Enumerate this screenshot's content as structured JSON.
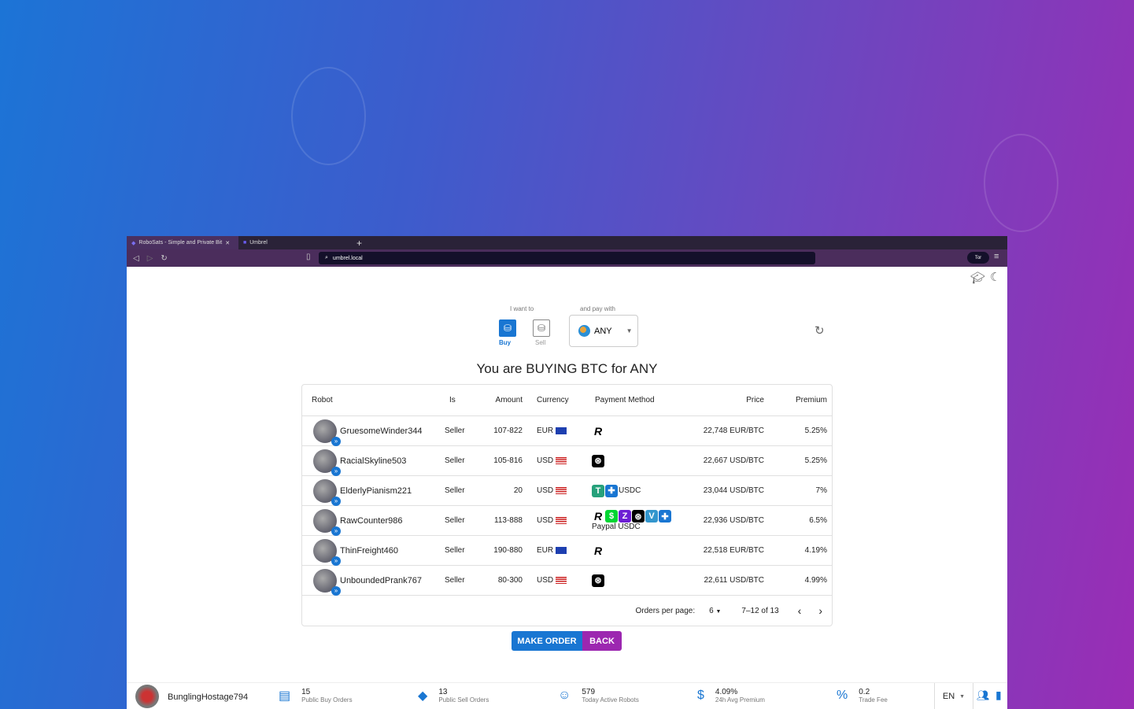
{
  "browser": {
    "tabs": [
      {
        "title": "RoboSats - Simple and Private Bit"
      },
      {
        "title": "Umbrel"
      }
    ],
    "new_tab": "+",
    "url": "umbrel.local",
    "tor": "Tor"
  },
  "selector": {
    "want_label": "I want to",
    "buy": "Buy",
    "sell": "Sell",
    "pay_label": "and pay with",
    "currency": "ANY"
  },
  "heading": "You are BUYING BTC for ANY",
  "table": {
    "columns": [
      "Robot",
      "Is",
      "Amount",
      "Currency",
      "Payment Method",
      "Price",
      "Premium"
    ],
    "rows": [
      {
        "robot": "GruesomeWinder344",
        "is": "Seller",
        "amount": "107-822",
        "currency": "EUR",
        "flag": "eu",
        "methods": [
          "revolut"
        ],
        "method_text": "",
        "price": "22,748 EUR/BTC",
        "premium": "5.25%"
      },
      {
        "robot": "RacialSkyline503",
        "is": "Seller",
        "amount": "105-816",
        "currency": "USD",
        "flag": "us",
        "methods": [
          "paypal-black"
        ],
        "method_text": "",
        "price": "22,667 USD/BTC",
        "premium": "5.25%"
      },
      {
        "robot": "ElderlyPianism221",
        "is": "Seller",
        "amount": "20",
        "currency": "USD",
        "flag": "us",
        "methods": [
          "tether",
          "more"
        ],
        "method_text": "USDC",
        "price": "23,044 USD/BTC",
        "premium": "7%"
      },
      {
        "robot": "RawCounter986",
        "is": "Seller",
        "amount": "113-888",
        "currency": "USD",
        "flag": "us",
        "methods": [
          "revolut",
          "cashapp",
          "zelle",
          "paypal-black",
          "venmo",
          "more"
        ],
        "method_text": "Paypal USDC",
        "price": "22,936 USD/BTC",
        "premium": "6.5%"
      },
      {
        "robot": "ThinFreight460",
        "is": "Seller",
        "amount": "190-880",
        "currency": "EUR",
        "flag": "eu",
        "methods": [
          "revolut"
        ],
        "method_text": "",
        "price": "22,518 EUR/BTC",
        "premium": "4.19%"
      },
      {
        "robot": "UnboundedPrank767",
        "is": "Seller",
        "amount": "80-300",
        "currency": "USD",
        "flag": "us",
        "methods": [
          "paypal-black"
        ],
        "method_text": "",
        "price": "22,611 USD/BTC",
        "premium": "4.99%"
      }
    ],
    "per_page_label": "Orders per page:",
    "per_page": "6",
    "range": "7–12 of 13"
  },
  "actions": {
    "make_order": "MAKE ORDER",
    "back": "BACK"
  },
  "footer": {
    "user": "BunglingHostage794",
    "stats": [
      {
        "value": "15",
        "label": "Public Buy Orders",
        "icon": "inbox-icon"
      },
      {
        "value": "13",
        "label": "Public Sell Orders",
        "icon": "tag-icon"
      },
      {
        "value": "579",
        "label": "Today Active Robots",
        "icon": "robot-icon"
      },
      {
        "value": "4.09%",
        "label": "24h Avg Premium",
        "icon": "price-change-icon"
      },
      {
        "value": "0.2",
        "label": "Trade Fee",
        "icon": "percent-icon"
      }
    ],
    "lang": "EN"
  },
  "colors": {
    "primary": "#1976d2",
    "secondary": "#9c27b0"
  }
}
